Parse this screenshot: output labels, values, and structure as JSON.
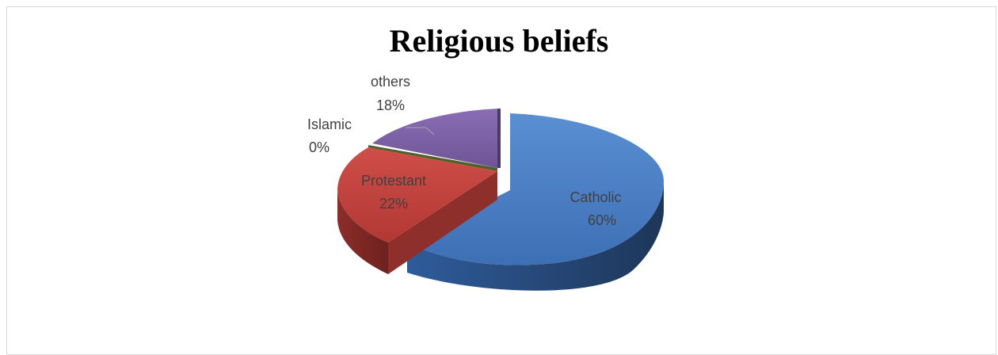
{
  "chart_data": {
    "type": "pie",
    "title": "Religious beliefs",
    "style": "3d-exploded",
    "slices": [
      {
        "label": "Catholic",
        "value": 60,
        "percent_label": "60%",
        "color": "#4a7ec4",
        "dark": "#264b7c"
      },
      {
        "label": "Protestant",
        "value": 22,
        "percent_label": "22%",
        "color": "#c0403c",
        "dark": "#7d2724"
      },
      {
        "label": "Islamic",
        "value": 0,
        "percent_label": "0%",
        "color": "#86a144",
        "dark": "#4f6128"
      },
      {
        "label": "others",
        "value": 18,
        "percent_label": "18%",
        "color": "#7e62a6",
        "dark": "#4b3a66"
      }
    ]
  }
}
